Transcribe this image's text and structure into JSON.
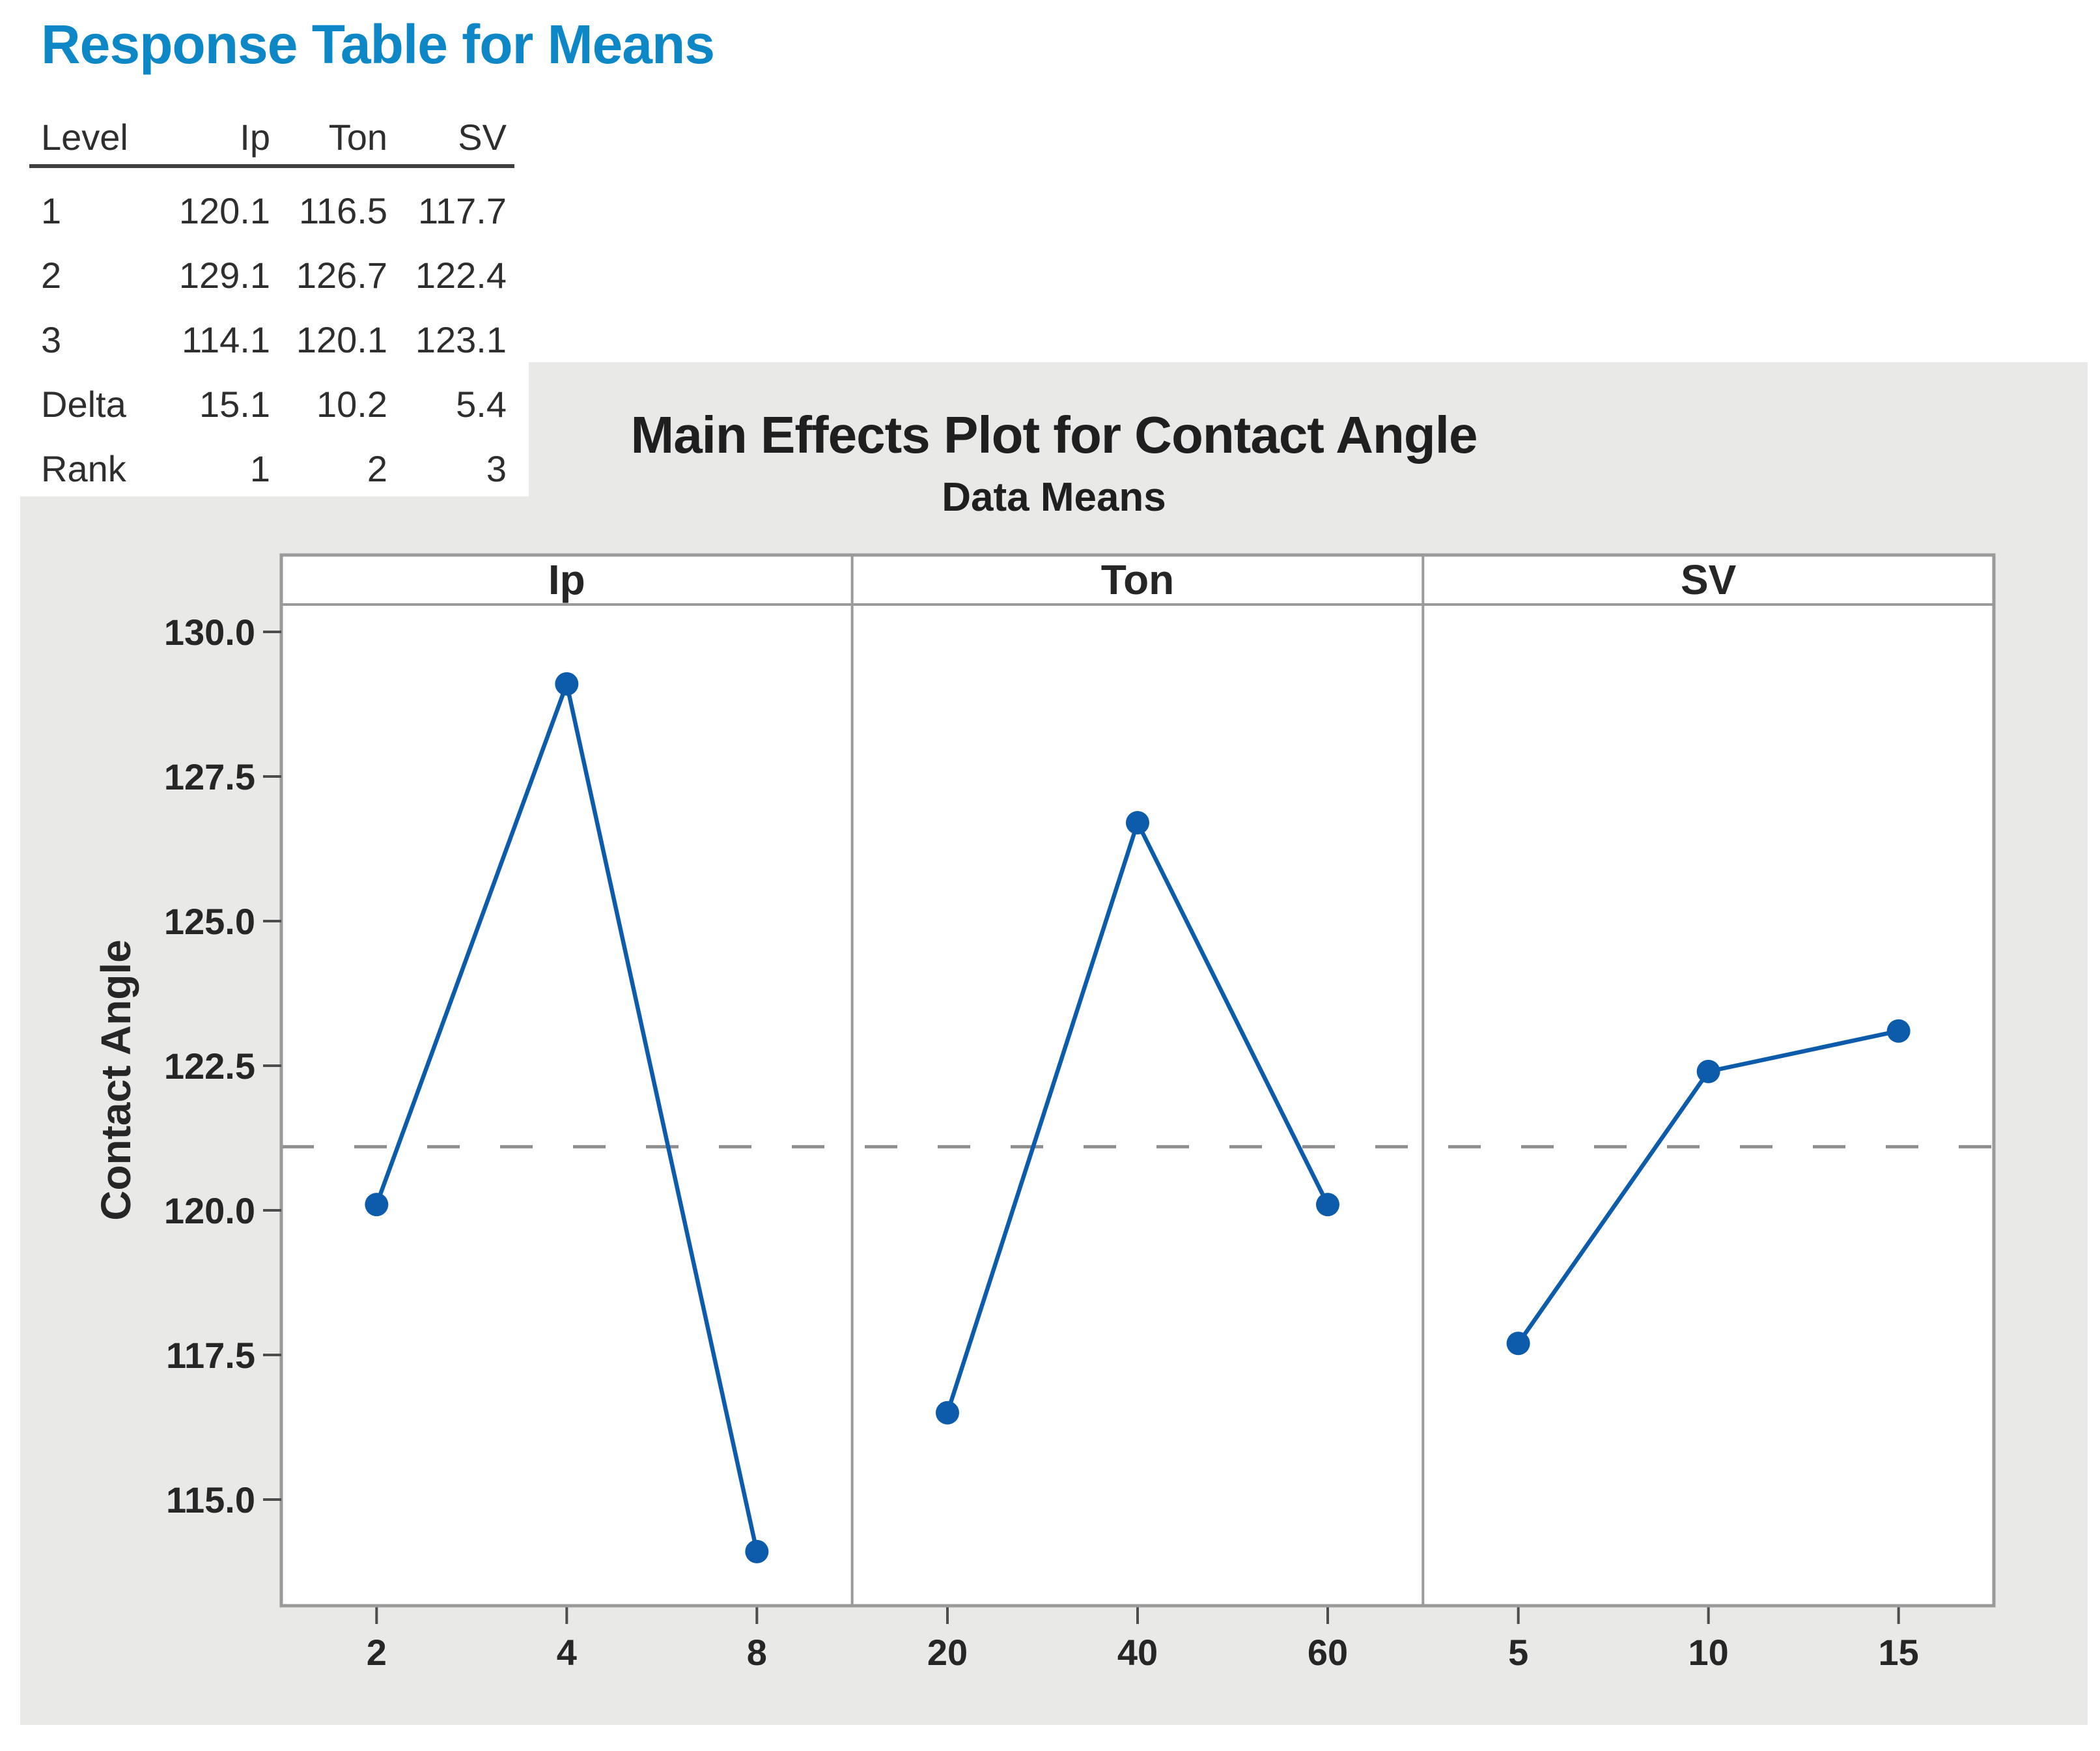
{
  "report": {
    "table": {
      "title": "Response Table for Means",
      "columns": [
        "Level",
        "Ip",
        "Ton",
        "SV"
      ],
      "rows": [
        [
          "1",
          "120.1",
          "116.5",
          "117.7"
        ],
        [
          "2",
          "129.1",
          "126.7",
          "122.4"
        ],
        [
          "3",
          "114.1",
          "120.1",
          "123.1"
        ],
        [
          "Delta",
          "15.1",
          "10.2",
          "5.4"
        ],
        [
          "Rank",
          "1",
          "2",
          "3"
        ]
      ]
    }
  },
  "chart_data": {
    "type": "line",
    "title": "Main Effects Plot for Contact Angle",
    "subtitle": "Data Means",
    "ylabel": "Contact Angle",
    "ytick_labels": [
      "130.0",
      "127.5",
      "125.0",
      "122.5",
      "120.0",
      "117.5",
      "115.0"
    ],
    "ylim": [
      113.2,
      130.5
    ],
    "grid": "off",
    "legend": "none",
    "reference_line_mean": 121.1,
    "panels": [
      {
        "label": "Ip",
        "x": [
          "2",
          "4",
          "8"
        ],
        "values": [
          120.1,
          129.1,
          114.1
        ]
      },
      {
        "label": "Ton",
        "x": [
          "20",
          "40",
          "60"
        ],
        "values": [
          116.5,
          126.7,
          120.1
        ]
      },
      {
        "label": "SV",
        "x": [
          "5",
          "10",
          "15"
        ],
        "values": [
          117.7,
          122.4,
          123.1
        ]
      }
    ],
    "colors": {
      "series": "#0d5cab",
      "reference_line": "#8f8f8f",
      "panel_border": "#9a9a9a",
      "tick_mark": "#4d4d4d",
      "panel_background": "#ffffff",
      "chart_background": "#e9e9e7",
      "heading": "#0e87c6",
      "text": "#262626"
    }
  }
}
